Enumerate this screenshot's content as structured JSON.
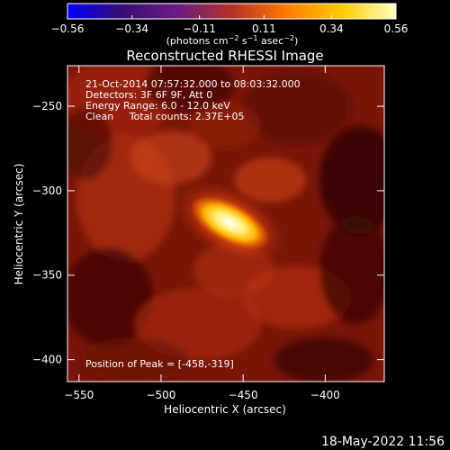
{
  "chart_data": {
    "type": "heatmap",
    "title": "Reconstructed RHESSI Image",
    "colorbar": {
      "min": -0.56,
      "max": 0.56,
      "ticks": [
        "−0.56",
        "−0.34",
        "−0.11",
        "0.11",
        "0.34",
        "0.56"
      ],
      "tick_values": [
        -0.56,
        -0.34,
        -0.11,
        0.11,
        0.34,
        0.56
      ],
      "label": "(photons cm",
      "label_exp1": "−2",
      "label_mid": " s",
      "label_exp2": "−1",
      "label_end": " asec",
      "label_exp3": "−2",
      "label_close": ")",
      "colors": [
        "#0000ff",
        "#3a0e73",
        "#6a1c84",
        "#b33228",
        "#ff7a00",
        "#ffcc00",
        "#ffffc0"
      ]
    },
    "xlabel": "Heliocentric X (arcsec)",
    "ylabel": "Heliocentric Y (arcsec)",
    "xlim": [
      -557,
      -364
    ],
    "ylim": [
      -413,
      -226
    ],
    "x_ticks": [
      -550,
      -500,
      -450,
      -400
    ],
    "y_ticks": [
      -400,
      -350,
      -300,
      -250
    ],
    "x_tick_labels": [
      "−550",
      "−500",
      "−450",
      "−400"
    ],
    "y_tick_labels": [
      "−400",
      "−350",
      "−300",
      "−250"
    ],
    "annotations": [
      "21-Oct-2014 07:57:32.000 to 08:03:32.000",
      "Detectors: 3F 6F 9F, Att 0",
      "Energy Range: 6.0 - 12.0 keV",
      "Clean     Total counts: 2.37E+05"
    ],
    "peak_text": "Position of Peak = [-458,-319]",
    "peak": {
      "x": -458,
      "y": -319,
      "value": 0.56
    },
    "footer": "18-May-2022 11:56"
  }
}
